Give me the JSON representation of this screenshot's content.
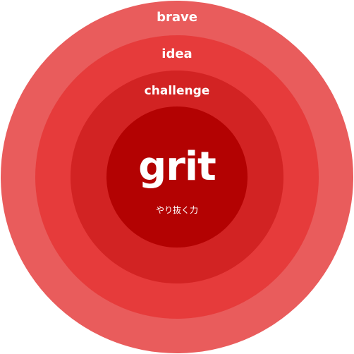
{
  "diagram": {
    "rings": [
      {
        "label": "brave",
        "color": "#e95c5c"
      },
      {
        "label": "idea",
        "color": "#e63b3b"
      },
      {
        "label": "challenge",
        "color": "#d22323"
      },
      {
        "label": "grit",
        "sublabel": "やり抜く力",
        "color": "#b30202"
      }
    ]
  }
}
